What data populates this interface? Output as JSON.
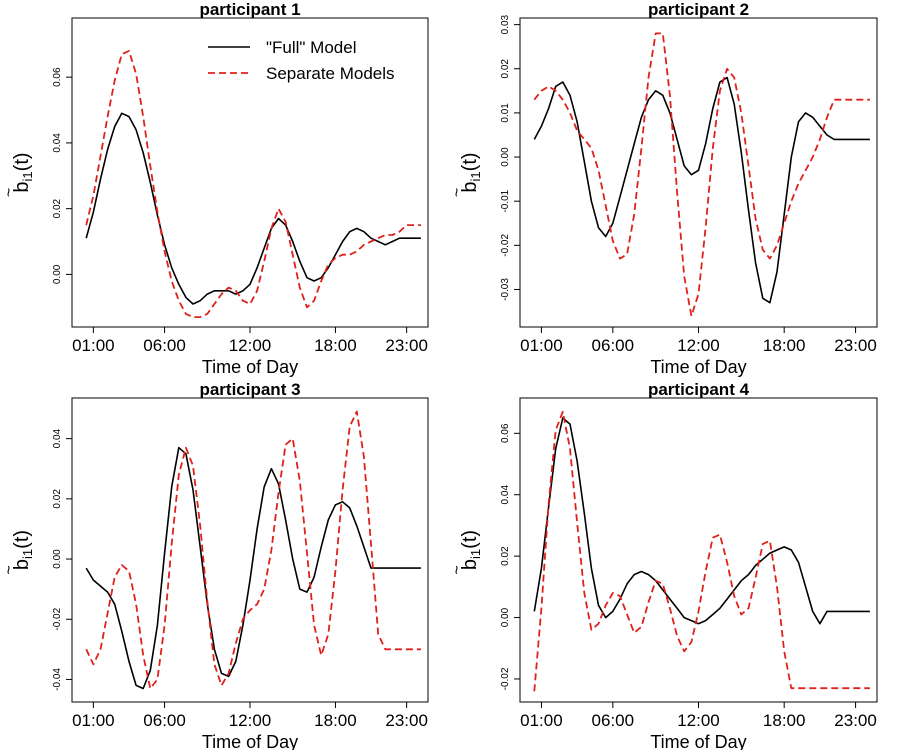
{
  "legend": {
    "full_label": "\"Full\" Model",
    "separate_label": "Separate Models"
  },
  "colors": {
    "full": "#000000",
    "separate": "#e0201b"
  },
  "chart_data": [
    {
      "type": "line",
      "title": "participant 1",
      "xlabel": "Time of Day",
      "ylabel_base": "b",
      "ylabel_sub": "i1",
      "ylabel_arg": "(t)",
      "ylabel_accent": "~",
      "x_ticks": [
        1,
        6,
        12,
        18,
        23
      ],
      "x_tick_labels": [
        "01:00",
        "06:00",
        "12:00",
        "18:00",
        "23:00"
      ],
      "y_ticks": [
        0.0,
        0.02,
        0.04,
        0.06
      ],
      "y_tick_labels": [
        "0.00",
        "0.02",
        "0.04",
        "0.06"
      ],
      "xlim": [
        -0.5,
        24.5
      ],
      "ylim": [
        -0.016,
        0.078
      ],
      "legend_position": "top-right",
      "series": [
        {
          "name": "\"Full\" Model",
          "style": "solid",
          "x": [
            0.5,
            1,
            1.5,
            2,
            2.5,
            3,
            3.5,
            4,
            4.5,
            5,
            5.5,
            6,
            6.5,
            7,
            7.5,
            8,
            8.5,
            9,
            9.5,
            10,
            10.5,
            11,
            11.5,
            12,
            12.5,
            13,
            13.5,
            14,
            14.5,
            15,
            15.5,
            16,
            16.5,
            17,
            17.5,
            18,
            18.5,
            19,
            19.5,
            20,
            20.5,
            21,
            21.5,
            22,
            22.5,
            23,
            23.5,
            24
          ],
          "y": [
            0.011,
            0.019,
            0.029,
            0.038,
            0.045,
            0.049,
            0.048,
            0.044,
            0.037,
            0.028,
            0.018,
            0.009,
            0.002,
            -0.003,
            -0.007,
            -0.009,
            -0.008,
            -0.006,
            -0.005,
            -0.005,
            -0.005,
            -0.006,
            -0.005,
            -0.003,
            0.002,
            0.008,
            0.014,
            0.017,
            0.015,
            0.01,
            0.004,
            -0.001,
            -0.002,
            -0.001,
            0.002,
            0.006,
            0.01,
            0.013,
            0.014,
            0.013,
            0.011,
            0.01,
            0.009,
            0.01,
            0.011,
            0.011,
            0.011,
            0.011
          ]
        },
        {
          "name": "Separate Models",
          "style": "dashed",
          "x": [
            0.5,
            1,
            1.5,
            2,
            2.5,
            3,
            3.5,
            4,
            4.5,
            5,
            5.5,
            6,
            6.5,
            7,
            7.5,
            8,
            8.5,
            9,
            9.5,
            10,
            10.5,
            11,
            11.5,
            12,
            12.5,
            13,
            13.5,
            14,
            14.5,
            15,
            15.5,
            16,
            16.5,
            17,
            17.5,
            18,
            18.5,
            19,
            19.5,
            20,
            20.5,
            21,
            21.5,
            22,
            22.5,
            23,
            23.5,
            24
          ],
          "y": [
            0.015,
            0.024,
            0.036,
            0.048,
            0.059,
            0.067,
            0.068,
            0.061,
            0.048,
            0.033,
            0.019,
            0.007,
            -0.002,
            -0.008,
            -0.012,
            -0.013,
            -0.013,
            -0.012,
            -0.009,
            -0.006,
            -0.004,
            -0.005,
            -0.008,
            -0.009,
            -0.005,
            0.004,
            0.014,
            0.02,
            0.016,
            0.006,
            -0.004,
            -0.01,
            -0.008,
            -0.002,
            0.003,
            0.005,
            0.006,
            0.006,
            0.007,
            0.009,
            0.01,
            0.011,
            0.012,
            0.012,
            0.013,
            0.015,
            0.015,
            0.015
          ]
        }
      ]
    },
    {
      "type": "line",
      "title": "participant 2",
      "xlabel": "Time of Day",
      "ylabel_base": "b",
      "ylabel_sub": "i1",
      "ylabel_arg": "(t)",
      "ylabel_accent": "~",
      "x_ticks": [
        1,
        6,
        12,
        18,
        23
      ],
      "x_tick_labels": [
        "01:00",
        "06:00",
        "12:00",
        "18:00",
        "23:00"
      ],
      "y_ticks": [
        -0.03,
        -0.02,
        -0.01,
        0.0,
        0.01,
        0.02,
        0.03
      ],
      "y_tick_labels": [
        "-0.03",
        "-0.02",
        "-0.01",
        "0.00",
        "0.01",
        "0.02",
        "0.03"
      ],
      "xlim": [
        -0.5,
        24.5
      ],
      "ylim": [
        -0.0385,
        0.0315
      ],
      "series": [
        {
          "name": "\"Full\" Model",
          "style": "solid",
          "x": [
            0.5,
            1,
            1.5,
            2,
            2.5,
            3,
            3.5,
            4,
            4.5,
            5,
            5.5,
            6,
            6.5,
            7,
            7.5,
            8,
            8.5,
            9,
            9.5,
            10,
            10.5,
            11,
            11.5,
            12,
            12.5,
            13,
            13.5,
            14,
            14.5,
            15,
            15.5,
            16,
            16.5,
            17,
            17.5,
            18,
            18.5,
            19,
            19.5,
            20,
            20.5,
            21,
            21.5,
            22,
            22.5,
            23,
            23.5,
            24
          ],
          "y": [
            0.004,
            0.007,
            0.011,
            0.016,
            0.017,
            0.014,
            0.008,
            -0.001,
            -0.01,
            -0.016,
            -0.018,
            -0.015,
            -0.009,
            -0.003,
            0.003,
            0.009,
            0.013,
            0.015,
            0.014,
            0.01,
            0.004,
            -0.002,
            -0.004,
            -0.003,
            0.003,
            0.011,
            0.017,
            0.018,
            0.012,
            0.001,
            -0.012,
            -0.024,
            -0.032,
            -0.033,
            -0.026,
            -0.013,
            0.0,
            0.008,
            0.01,
            0.009,
            0.007,
            0.005,
            0.004,
            0.004,
            0.004,
            0.004,
            0.004,
            0.004
          ]
        },
        {
          "name": "Separate Models",
          "style": "dashed",
          "x": [
            0.5,
            1,
            1.5,
            2,
            2.5,
            3,
            3.5,
            4,
            4.5,
            5,
            5.5,
            6,
            6.5,
            7,
            7.5,
            8,
            8.5,
            9,
            9.5,
            10,
            10.5,
            11,
            11.5,
            12,
            12.5,
            13,
            13.5,
            14,
            14.5,
            15,
            15.5,
            16,
            16.5,
            17,
            17.5,
            18,
            18.5,
            19,
            19.5,
            20,
            20.5,
            21,
            21.5,
            22,
            22.5,
            23,
            23.5,
            24
          ],
          "y": [
            0.013,
            0.015,
            0.016,
            0.015,
            0.013,
            0.01,
            0.006,
            0.004,
            0.002,
            -0.003,
            -0.011,
            -0.019,
            -0.023,
            -0.022,
            -0.013,
            0.002,
            0.018,
            0.028,
            0.028,
            0.014,
            -0.008,
            -0.027,
            -0.036,
            -0.031,
            -0.016,
            0.002,
            0.015,
            0.02,
            0.018,
            0.01,
            -0.002,
            -0.014,
            -0.021,
            -0.023,
            -0.02,
            -0.015,
            -0.01,
            -0.006,
            -0.003,
            0.0,
            0.004,
            0.009,
            0.013,
            0.013,
            0.013,
            0.013,
            0.013,
            0.013
          ]
        }
      ]
    },
    {
      "type": "line",
      "title": "participant 3",
      "xlabel": "Time of Day",
      "ylabel_base": "b",
      "ylabel_sub": "i1",
      "ylabel_arg": "(t)",
      "ylabel_accent": "~",
      "x_ticks": [
        1,
        6,
        12,
        18,
        23
      ],
      "x_tick_labels": [
        "01:00",
        "06:00",
        "12:00",
        "18:00",
        "23:00"
      ],
      "y_ticks": [
        -0.04,
        -0.02,
        0.0,
        0.02,
        0.04
      ],
      "y_tick_labels": [
        "-0.04",
        "-0.02",
        "0.00",
        "0.02",
        "0.04"
      ],
      "xlim": [
        -0.5,
        24.5
      ],
      "ylim": [
        -0.0475,
        0.0535
      ],
      "series": [
        {
          "name": "\"Full\" Model",
          "style": "solid",
          "x": [
            0.5,
            1,
            1.5,
            2,
            2.5,
            3,
            3.5,
            4,
            4.5,
            5,
            5.5,
            6,
            6.5,
            7,
            7.5,
            8,
            8.5,
            9,
            9.5,
            10,
            10.5,
            11,
            11.5,
            12,
            12.5,
            13,
            13.5,
            14,
            14.5,
            15,
            15.5,
            16,
            16.5,
            17,
            17.5,
            18,
            18.5,
            19,
            19.5,
            20,
            20.5,
            21,
            21.5,
            22,
            22.5,
            23,
            23.5,
            24
          ],
          "y": [
            -0.003,
            -0.007,
            -0.009,
            -0.011,
            -0.015,
            -0.024,
            -0.034,
            -0.042,
            -0.043,
            -0.037,
            -0.022,
            0.002,
            0.024,
            0.037,
            0.035,
            0.023,
            0.004,
            -0.015,
            -0.03,
            -0.038,
            -0.039,
            -0.034,
            -0.022,
            -0.007,
            0.01,
            0.024,
            0.03,
            0.025,
            0.013,
            0.0,
            -0.01,
            -0.011,
            -0.006,
            0.004,
            0.013,
            0.018,
            0.019,
            0.017,
            0.011,
            0.004,
            -0.003,
            -0.003,
            -0.003,
            -0.003,
            -0.003,
            -0.003,
            -0.003,
            -0.003
          ]
        },
        {
          "name": "Separate Models",
          "style": "dashed",
          "x": [
            0.5,
            1,
            1.5,
            2,
            2.5,
            3,
            3.5,
            4,
            4.5,
            5,
            5.5,
            6,
            6.5,
            7,
            7.5,
            8,
            8.5,
            9,
            9.5,
            10,
            10.5,
            11,
            11.5,
            12,
            12.5,
            13,
            13.5,
            14,
            14.5,
            15,
            15.5,
            16,
            16.5,
            17,
            17.5,
            18,
            18.5,
            19,
            19.5,
            20,
            20.5,
            21,
            21.5,
            22,
            22.5,
            23,
            23.5,
            24
          ],
          "y": [
            -0.03,
            -0.035,
            -0.03,
            -0.018,
            -0.006,
            -0.002,
            -0.004,
            -0.015,
            -0.032,
            -0.043,
            -0.04,
            -0.022,
            0.005,
            0.028,
            0.037,
            0.031,
            0.011,
            -0.014,
            -0.035,
            -0.042,
            -0.038,
            -0.028,
            -0.02,
            -0.017,
            -0.015,
            -0.01,
            0.003,
            0.022,
            0.038,
            0.04,
            0.026,
            0.002,
            -0.022,
            -0.032,
            -0.025,
            -0.004,
            0.023,
            0.044,
            0.049,
            0.034,
            0.005,
            -0.025,
            -0.03,
            -0.03,
            -0.03,
            -0.03,
            -0.03,
            -0.03
          ]
        }
      ]
    },
    {
      "type": "line",
      "title": "participant 4",
      "xlabel": "Time of Day",
      "ylabel_base": "b",
      "ylabel_sub": "i1",
      "ylabel_arg": "(t)",
      "ylabel_accent": "~",
      "x_ticks": [
        1,
        6,
        12,
        18,
        23
      ],
      "x_tick_labels": [
        "01:00",
        "06:00",
        "12:00",
        "18:00",
        "23:00"
      ],
      "y_ticks": [
        -0.02,
        0.0,
        0.02,
        0.04,
        0.06
      ],
      "y_tick_labels": [
        "-0.02",
        "0.00",
        "0.02",
        "0.04",
        "0.06"
      ],
      "xlim": [
        -0.5,
        24.5
      ],
      "ylim": [
        -0.0275,
        0.0715
      ],
      "series": [
        {
          "name": "\"Full\" Model",
          "style": "solid",
          "x": [
            0.5,
            1,
            1.5,
            2,
            2.5,
            3,
            3.5,
            4,
            4.5,
            5,
            5.5,
            6,
            6.5,
            7,
            7.5,
            8,
            8.5,
            9,
            9.5,
            10,
            10.5,
            11,
            11.5,
            12,
            12.5,
            13,
            13.5,
            14,
            14.5,
            15,
            15.5,
            16,
            16.5,
            17,
            17.5,
            18,
            18.5,
            19,
            19.5,
            20,
            20.5,
            21,
            21.5,
            22,
            22.5,
            23,
            23.5,
            24
          ],
          "y": [
            0.002,
            0.016,
            0.036,
            0.055,
            0.065,
            0.063,
            0.051,
            0.034,
            0.016,
            0.004,
            0.0,
            0.002,
            0.006,
            0.011,
            0.014,
            0.015,
            0.014,
            0.012,
            0.009,
            0.006,
            0.003,
            0.0,
            -0.001,
            -0.002,
            -0.001,
            0.001,
            0.003,
            0.006,
            0.009,
            0.012,
            0.014,
            0.017,
            0.019,
            0.021,
            0.022,
            0.023,
            0.022,
            0.018,
            0.01,
            0.002,
            -0.002,
            0.002,
            0.002,
            0.002,
            0.002,
            0.002,
            0.002,
            0.002
          ]
        },
        {
          "name": "Separate Models",
          "style": "dashed",
          "x": [
            0.5,
            1,
            1.5,
            2,
            2.5,
            3,
            3.5,
            4,
            4.5,
            5,
            5.5,
            6,
            6.5,
            7,
            7.5,
            8,
            8.5,
            9,
            9.5,
            10,
            10.5,
            11,
            11.5,
            12,
            12.5,
            13,
            13.5,
            14,
            14.5,
            15,
            15.5,
            16,
            16.5,
            17,
            17.5,
            18,
            18.5,
            19,
            19.5,
            20,
            20.5,
            21,
            21.5,
            22,
            22.5,
            23,
            23.5,
            24
          ],
          "y": [
            -0.024,
            0.003,
            0.037,
            0.061,
            0.067,
            0.055,
            0.031,
            0.008,
            -0.004,
            -0.002,
            0.004,
            0.008,
            0.007,
            0.001,
            -0.005,
            -0.003,
            0.005,
            0.012,
            0.011,
            0.003,
            -0.006,
            -0.011,
            -0.008,
            0.002,
            0.015,
            0.026,
            0.027,
            0.018,
            0.007,
            0.001,
            0.003,
            0.013,
            0.024,
            0.025,
            0.01,
            -0.011,
            -0.023,
            -0.023,
            -0.023,
            -0.023,
            -0.023,
            -0.023,
            -0.023,
            -0.023,
            -0.023,
            -0.023,
            -0.023,
            -0.023
          ]
        }
      ]
    }
  ]
}
